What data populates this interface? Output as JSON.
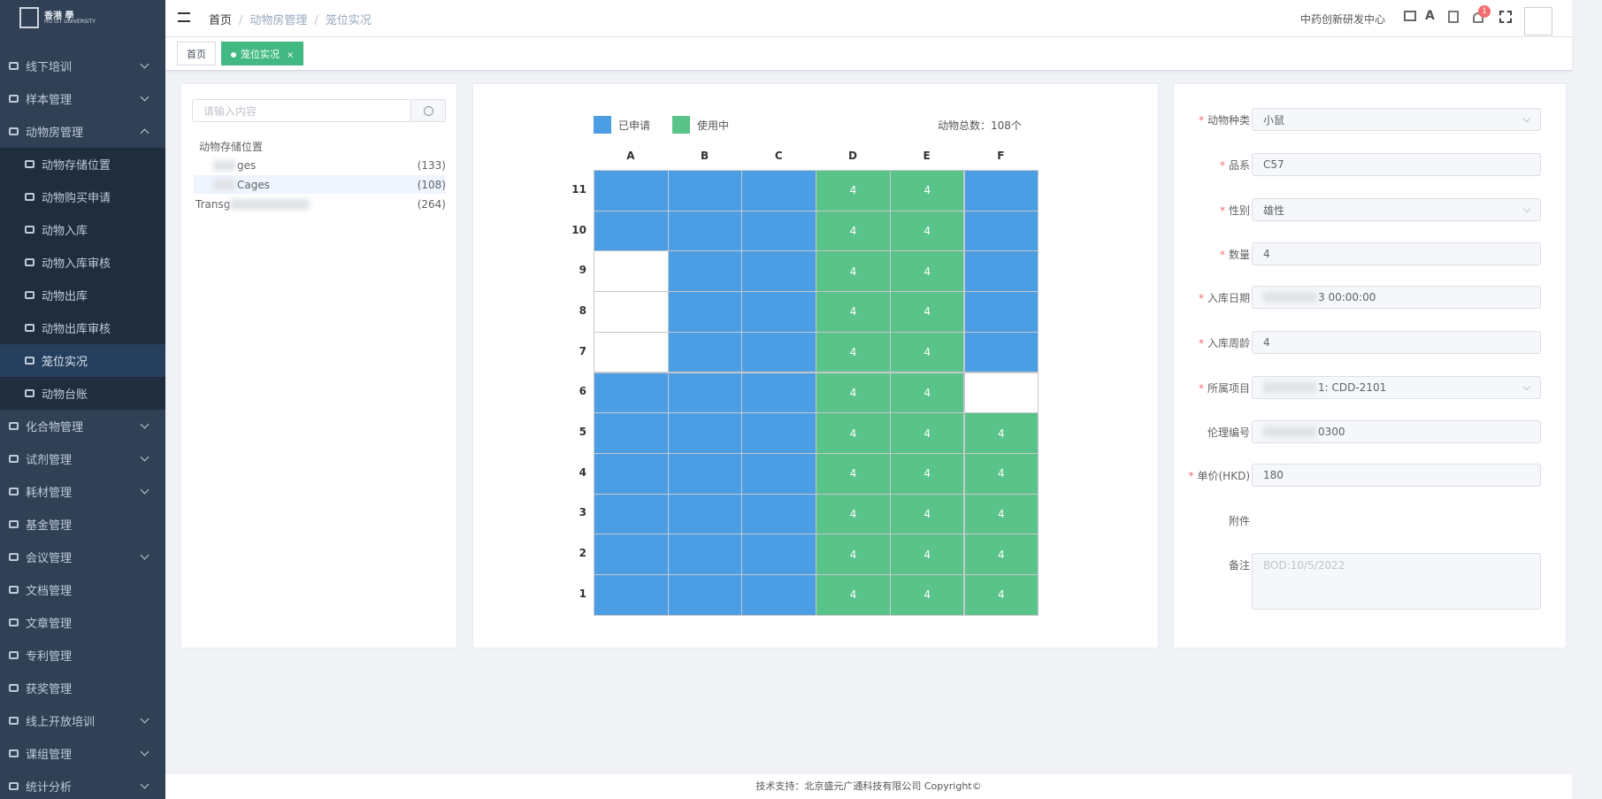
{
  "logo": {
    "line1": "香港 學",
    "line2": "HO IST UNIVERSITY"
  },
  "sidebar": {
    "items": [
      {
        "label": "线下培训",
        "arrow": "down"
      },
      {
        "label": "样本管理",
        "arrow": "down"
      },
      {
        "label": "动物房管理",
        "arrow": "up",
        "children": [
          {
            "label": "动物存储位置"
          },
          {
            "label": "动物购买申请"
          },
          {
            "label": "动物入库"
          },
          {
            "label": "动物入库审核"
          },
          {
            "label": "动物出库"
          },
          {
            "label": "动物出库审核"
          },
          {
            "label": "笼位实况",
            "active": true
          },
          {
            "label": "动物台账"
          }
        ]
      },
      {
        "label": "化合物管理",
        "arrow": "down"
      },
      {
        "label": "试剂管理",
        "arrow": "down"
      },
      {
        "label": "耗材管理",
        "arrow": "down"
      },
      {
        "label": "基金管理"
      },
      {
        "label": "会议管理",
        "arrow": "down"
      },
      {
        "label": "文档管理"
      },
      {
        "label": "文章管理"
      },
      {
        "label": "专利管理"
      },
      {
        "label": "获奖管理"
      },
      {
        "label": "线上开放培训",
        "arrow": "down"
      },
      {
        "label": "课组管理",
        "arrow": "down"
      },
      {
        "label": "统计分析",
        "arrow": "down"
      }
    ]
  },
  "header": {
    "breadcrumb": [
      "首页",
      "动物房管理",
      "笼位实况"
    ],
    "org": "中药创新研发中心",
    "badge": "1"
  },
  "tags": [
    {
      "label": "首页"
    },
    {
      "label": "笼位实况",
      "active": true
    }
  ],
  "tree": {
    "search_placeholder": "请输入内容",
    "title": "动物存储位置",
    "items": [
      {
        "name": "ges",
        "count": "(133)"
      },
      {
        "name": "Cages",
        "count": "(108)",
        "selected": true
      },
      {
        "name": "Transg",
        "count": "(264)"
      }
    ]
  },
  "grid": {
    "legend": [
      {
        "label": "已申请",
        "color": "#4b9de4"
      },
      {
        "label": "使用中",
        "color": "#5ac389"
      }
    ],
    "total": "动物总数：108个",
    "columns": [
      "A",
      "B",
      "C",
      "D",
      "E",
      "F"
    ],
    "rows": [
      {
        "label": "11",
        "cells": [
          {
            "color": "#4b9de4"
          },
          {
            "color": "#4b9de4"
          },
          {
            "color": "#4b9de4"
          },
          {
            "color": "#5ac389",
            "text": "4"
          },
          {
            "color": "#5ac389",
            "text": "4"
          },
          {
            "color": "#4b9de4"
          }
        ]
      },
      {
        "label": "10",
        "cells": [
          {
            "color": "#4b9de4"
          },
          {
            "color": "#4b9de4"
          },
          {
            "color": "#4b9de4"
          },
          {
            "color": "#5ac389",
            "text": "4"
          },
          {
            "color": "#5ac389",
            "text": "4"
          },
          {
            "color": "#4b9de4"
          }
        ]
      },
      {
        "label": "9",
        "cells": [
          {
            "color": "#ffffff"
          },
          {
            "color": "#4b9de4"
          },
          {
            "color": "#4b9de4"
          },
          {
            "color": "#5ac389",
            "text": "4"
          },
          {
            "color": "#5ac389",
            "text": "4"
          },
          {
            "color": "#4b9de4"
          }
        ]
      },
      {
        "label": "8",
        "cells": [
          {
            "color": "#ffffff"
          },
          {
            "color": "#4b9de4"
          },
          {
            "color": "#4b9de4"
          },
          {
            "color": "#5ac389",
            "text": "4"
          },
          {
            "color": "#5ac389",
            "text": "4"
          },
          {
            "color": "#4b9de4"
          }
        ]
      },
      {
        "label": "7",
        "cells": [
          {
            "color": "#ffffff"
          },
          {
            "color": "#4b9de4"
          },
          {
            "color": "#4b9de4"
          },
          {
            "color": "#5ac389",
            "text": "4"
          },
          {
            "color": "#5ac389",
            "text": "4"
          },
          {
            "color": "#4b9de4"
          }
        ]
      },
      {
        "label": "6",
        "cells": [
          {
            "color": "#4b9de4"
          },
          {
            "color": "#4b9de4"
          },
          {
            "color": "#4b9de4"
          },
          {
            "color": "#5ac389",
            "text": "4"
          },
          {
            "color": "#5ac389",
            "text": "4"
          },
          {
            "color": "#ffffff"
          }
        ]
      },
      {
        "label": "5",
        "cells": [
          {
            "color": "#4b9de4"
          },
          {
            "color": "#4b9de4"
          },
          {
            "color": "#4b9de4"
          },
          {
            "color": "#5ac389",
            "text": "4"
          },
          {
            "color": "#5ac389",
            "text": "4"
          },
          {
            "color": "#5ac389",
            "text": "4"
          }
        ]
      },
      {
        "label": "4",
        "cells": [
          {
            "color": "#4b9de4"
          },
          {
            "color": "#4b9de4"
          },
          {
            "color": "#4b9de4"
          },
          {
            "color": "#5ac389",
            "text": "4"
          },
          {
            "color": "#5ac389",
            "text": "4"
          },
          {
            "color": "#5ac389",
            "text": "4"
          }
        ]
      },
      {
        "label": "3",
        "cells": [
          {
            "color": "#4b9de4"
          },
          {
            "color": "#4b9de4"
          },
          {
            "color": "#4b9de4"
          },
          {
            "color": "#5ac389",
            "text": "4"
          },
          {
            "color": "#5ac389",
            "text": "4"
          },
          {
            "color": "#5ac389",
            "text": "4"
          }
        ]
      },
      {
        "label": "2",
        "cells": [
          {
            "color": "#4b9de4"
          },
          {
            "color": "#4b9de4"
          },
          {
            "color": "#4b9de4"
          },
          {
            "color": "#5ac389",
            "text": "4"
          },
          {
            "color": "#5ac389",
            "text": "4"
          },
          {
            "color": "#5ac389",
            "text": "4"
          }
        ]
      },
      {
        "label": "1",
        "cells": [
          {
            "color": "#4b9de4"
          },
          {
            "color": "#4b9de4"
          },
          {
            "color": "#4b9de4"
          },
          {
            "color": "#5ac389",
            "text": "4"
          },
          {
            "color": "#5ac389",
            "text": "4"
          },
          {
            "color": "#5ac389",
            "text": "4"
          }
        ]
      }
    ]
  },
  "form": {
    "fields": [
      {
        "label": "动物种类",
        "required": true,
        "value": "小鼠",
        "select": true
      },
      {
        "label": "品系",
        "required": true,
        "value": "C57"
      },
      {
        "label": "性别",
        "required": true,
        "value": "雄性",
        "select": true
      },
      {
        "label": "数量",
        "required": true,
        "value": "4"
      },
      {
        "label": "入库日期",
        "required": true,
        "value": "3 00:00:00",
        "blurred": true
      },
      {
        "label": "入库周龄",
        "required": true,
        "value": "4"
      },
      {
        "label": "所属项目",
        "required": true,
        "value": "1: CDD-2101",
        "select": true,
        "blurred": true
      },
      {
        "label": "伦理编号",
        "value": "0300",
        "blurred": true
      },
      {
        "label": "单价(HKD)",
        "required": true,
        "value": "180"
      },
      {
        "label": "附件"
      },
      {
        "label": "备注",
        "placeholder": "BOD:10/5/2022",
        "textarea": true
      }
    ]
  },
  "footer": "技术支持：北京盛元广通科技有限公司 Copyright©"
}
